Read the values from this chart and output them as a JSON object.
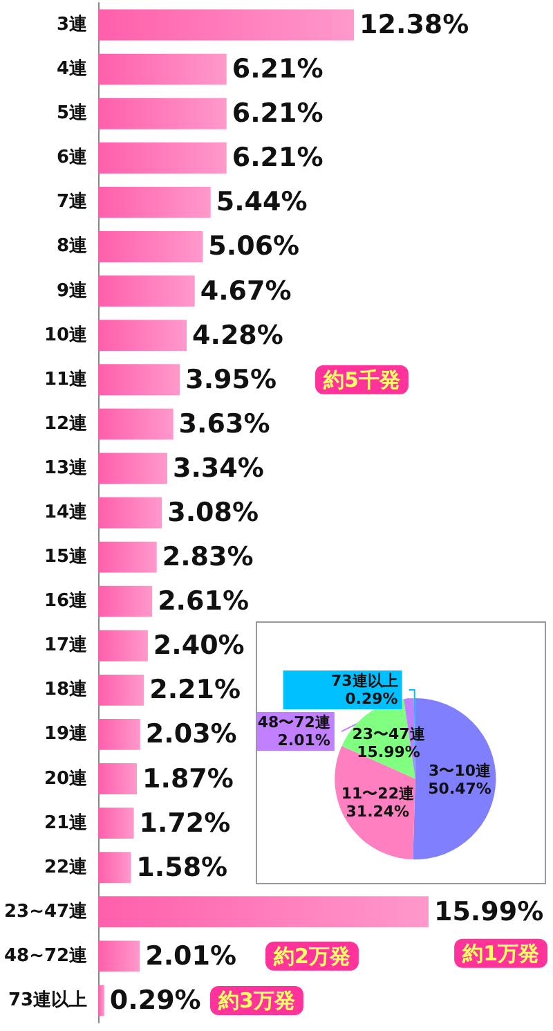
{
  "chart_data": [
    {
      "type": "bar",
      "orientation": "horizontal",
      "categories": [
        "3連",
        "4連",
        "5連",
        "6連",
        "7連",
        "8連",
        "9連",
        "10連",
        "11連",
        "12連",
        "13連",
        "14連",
        "15連",
        "16連",
        "17連",
        "18連",
        "19連",
        "20連",
        "21連",
        "22連",
        "23~47連",
        "48~72連",
        "73連以上"
      ],
      "values": [
        12.38,
        6.21,
        6.21,
        6.21,
        5.44,
        5.06,
        4.67,
        4.28,
        3.95,
        3.63,
        3.34,
        3.08,
        2.83,
        2.61,
        2.4,
        2.21,
        2.03,
        1.87,
        1.72,
        1.58,
        15.99,
        2.01,
        0.29
      ],
      "value_labels": [
        "12.38%",
        "6.21%",
        "6.21%",
        "6.21%",
        "5.44%",
        "5.06%",
        "4.67%",
        "4.28%",
        "3.95%",
        "3.63%",
        "3.34%",
        "3.08%",
        "2.83%",
        "2.61%",
        "2.40%",
        "2.21%",
        "2.03%",
        "1.87%",
        "1.72%",
        "1.58%",
        "15.99%",
        "2.01%",
        "0.29%"
      ],
      "color": "#ff5fab",
      "tick_labels": "y",
      "legend": false,
      "annotations": [
        "約5千発",
        "約1万発",
        "約2万発",
        "約3万発"
      ]
    },
    {
      "type": "pie",
      "categories": [
        "3〜10連",
        "11〜22連",
        "23〜47連",
        "48〜72連",
        "73連以上"
      ],
      "values": [
        50.47,
        31.24,
        15.99,
        2.01,
        0.29
      ],
      "colors": [
        "#8080ff",
        "#ff80c0",
        "#80ff80",
        "#c080ff",
        "#00c0ff"
      ],
      "value_labels": [
        "50.47%",
        "31.24%",
        "15.99%",
        "2.01%",
        "0.29%"
      ],
      "legend": false
    }
  ]
}
